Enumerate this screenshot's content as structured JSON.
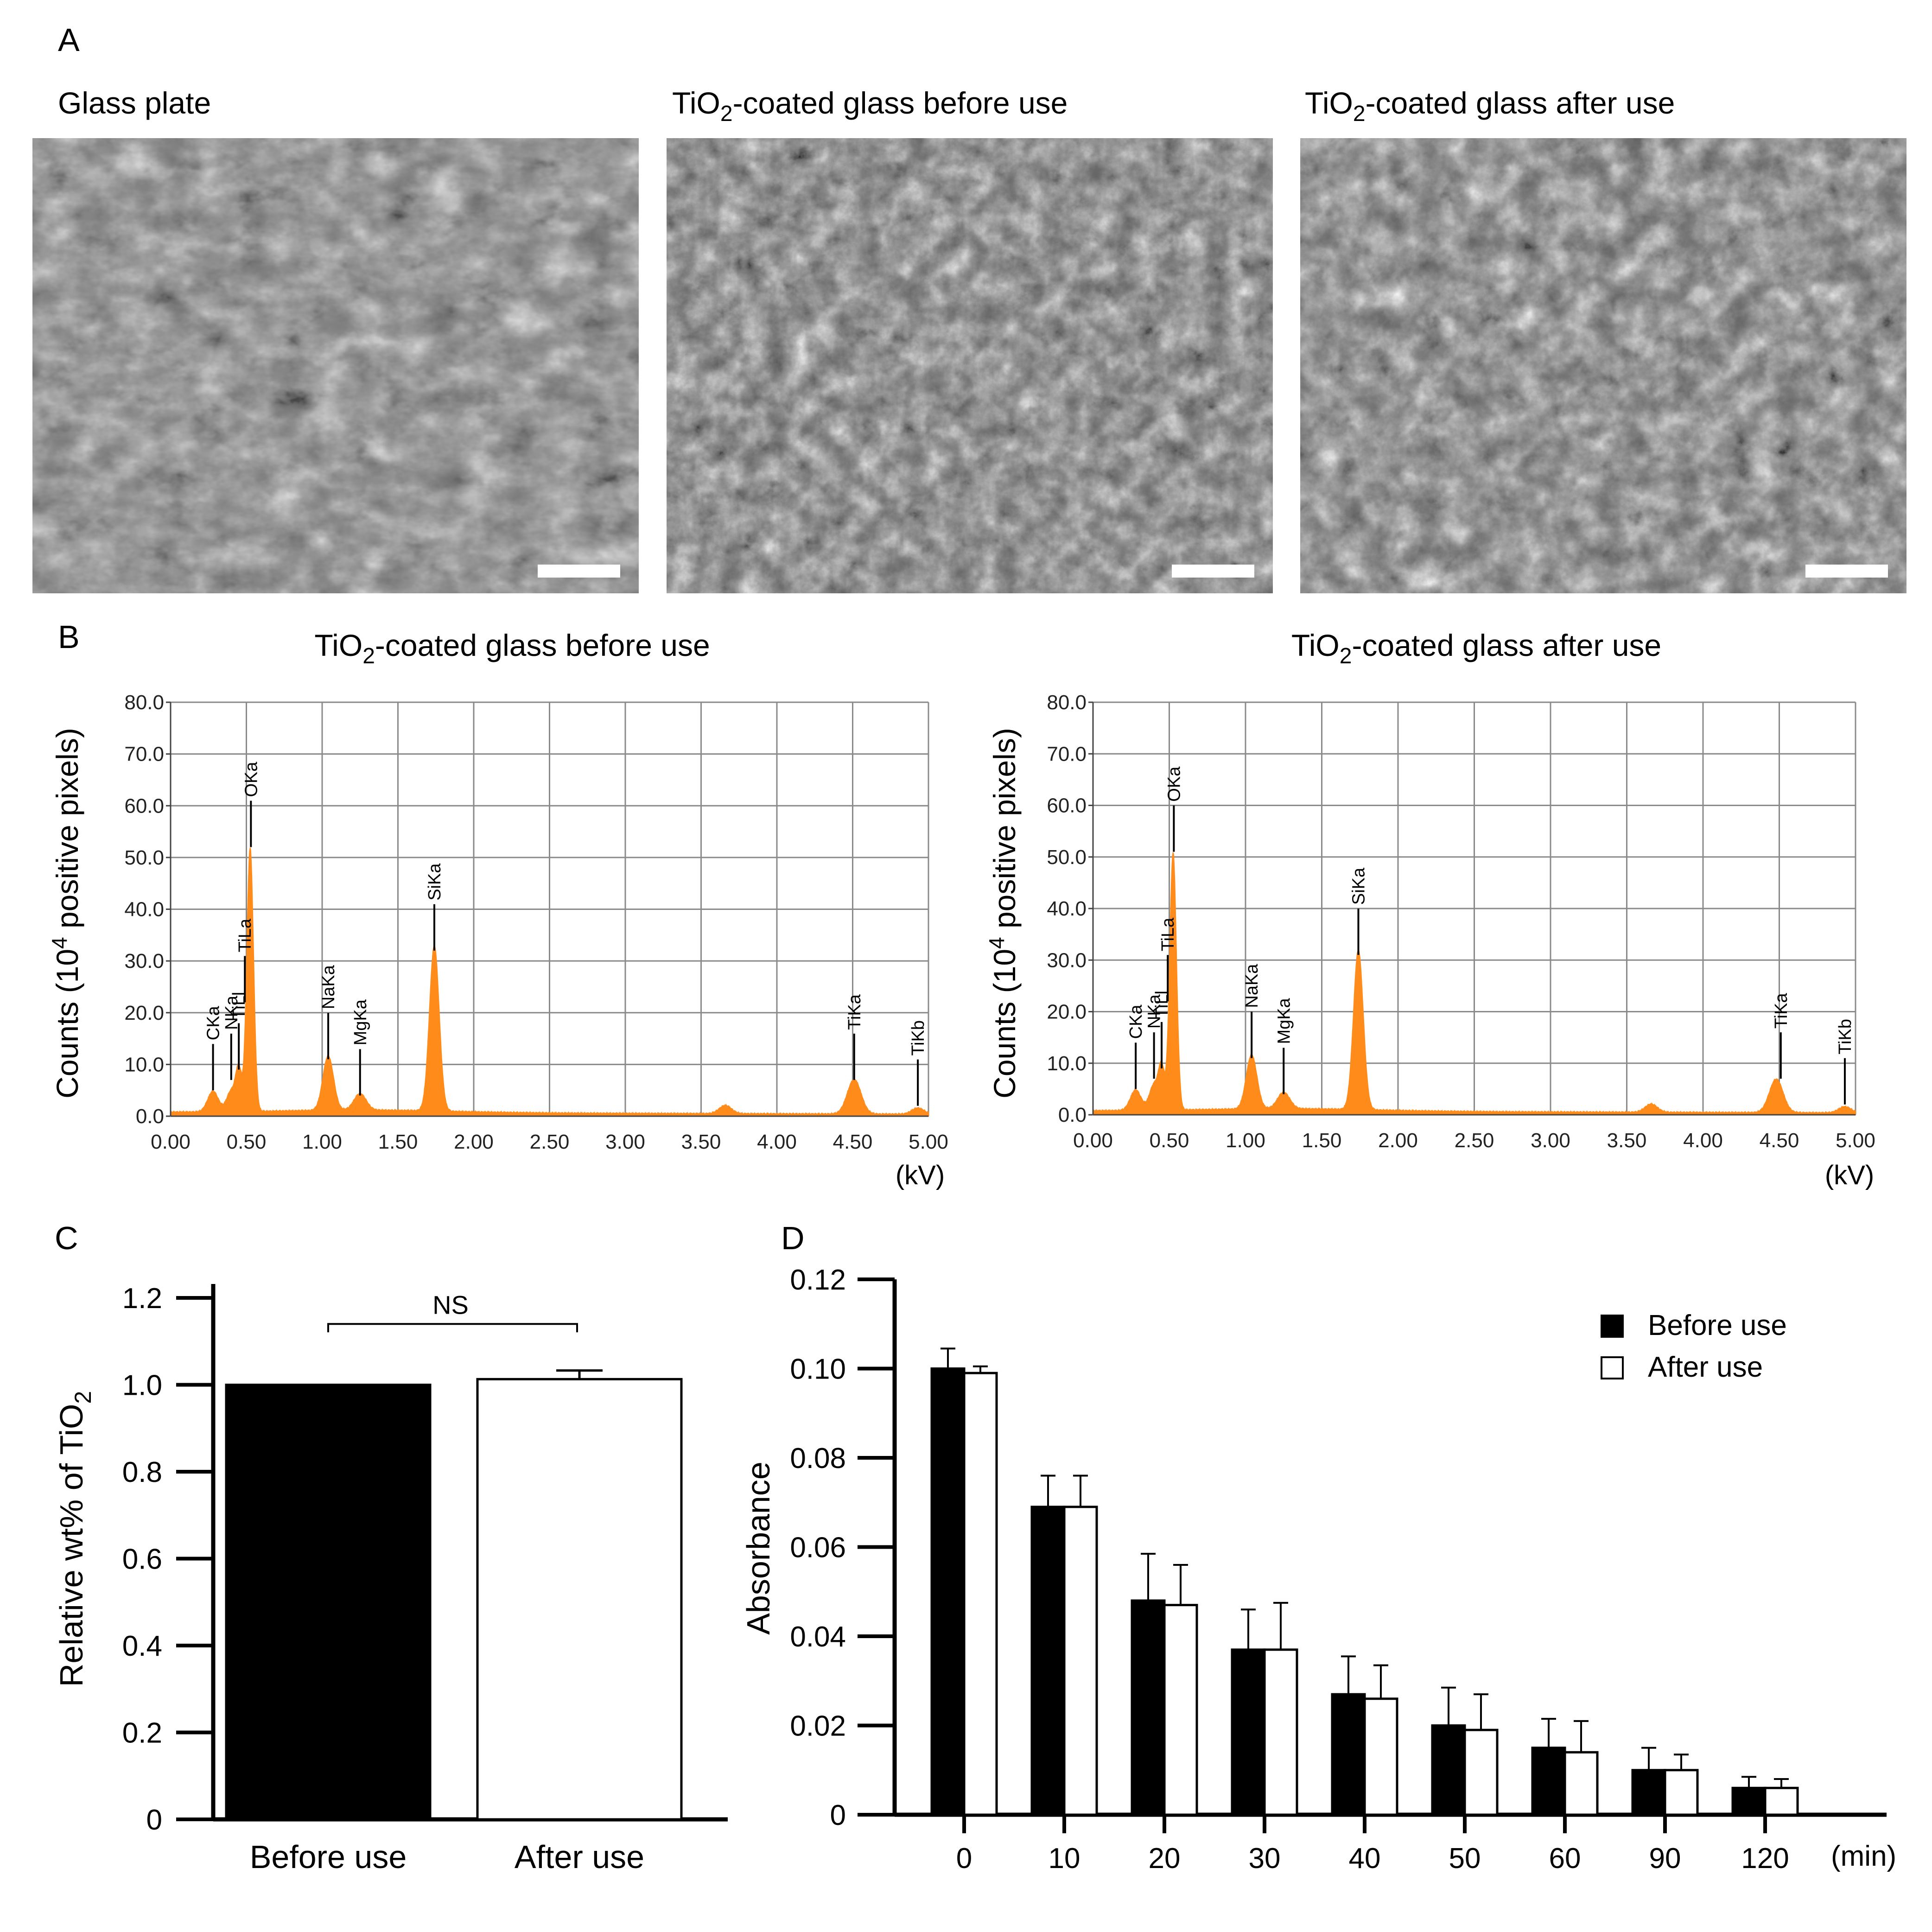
{
  "panels": {
    "A": {
      "letter": "A",
      "images": [
        {
          "title_main": "Glass plate",
          "title_sub": "",
          "title_tail": ""
        },
        {
          "title_main": "TiO",
          "title_sub": "2",
          "title_tail": "-coated glass before use"
        },
        {
          "title_main": "TiO",
          "title_sub": "2",
          "title_tail": "-coated glass after use"
        }
      ]
    },
    "B": {
      "letter": "B",
      "ylabel_a": "Counts (10",
      "ylabel_sup": "4",
      "ylabel_b": " positive pixels)",
      "xunit": "(kV)",
      "spectra": [
        {
          "title_main": "TiO",
          "title_sub": "2",
          "title_tail": "-coated glass before use"
        },
        {
          "title_main": "TiO",
          "title_sub": "2",
          "title_tail": "-coated glass after use"
        }
      ]
    },
    "C": {
      "letter": "C",
      "ylabel_a": "Relative wt% of TiO",
      "ylabel_sub": "2",
      "sig_label": "NS"
    },
    "D": {
      "letter": "D",
      "ylabel": "Absorbance",
      "xunit": "(min)",
      "legend": [
        "Before use",
        "After use"
      ]
    }
  },
  "chart_data": [
    {
      "type": "area",
      "panel": "B-left",
      "title": "TiO2-coated glass before use",
      "xlabel": "(kV)",
      "ylabel": "Counts (10^4 positive pixels)",
      "xlim": [
        0,
        5
      ],
      "ylim": [
        0,
        80
      ],
      "color": "#FF8C1A",
      "grid": true,
      "x_ticks": [
        "0.00",
        "0.50",
        "1.00",
        "1.50",
        "2.00",
        "2.50",
        "3.00",
        "3.50",
        "4.00",
        "4.50",
        "5.00"
      ],
      "y_ticks": [
        "0.0",
        "10.0",
        "20.0",
        "30.0",
        "40.0",
        "50.0",
        "60.0",
        "70.0",
        "80.0"
      ],
      "peaks": [
        {
          "x": 0.28,
          "height": 4,
          "width": 0.035
        },
        {
          "x": 0.4,
          "height": 4,
          "width": 0.03
        },
        {
          "x": 0.45,
          "height": 8,
          "width": 0.02
        },
        {
          "x": 0.525,
          "height": 51,
          "width": 0.022
        },
        {
          "x": 1.04,
          "height": 10.5,
          "width": 0.035
        },
        {
          "x": 1.25,
          "height": 3.2,
          "width": 0.04
        },
        {
          "x": 1.74,
          "height": 32,
          "width": 0.032
        },
        {
          "x": 3.66,
          "height": 1.6,
          "width": 0.04
        },
        {
          "x": 4.51,
          "height": 6.7,
          "width": 0.045
        },
        {
          "x": 4.93,
          "height": 1.2,
          "width": 0.04
        }
      ],
      "annotations": [
        {
          "label": "CKa",
          "x": 0.28,
          "peak": 5
        },
        {
          "label": "NKa",
          "x": 0.4,
          "peak": 7
        },
        {
          "label": "TiLl",
          "x": 0.45,
          "peak": 9
        },
        {
          "label": "TiLa",
          "x": 0.49,
          "peak": 22
        },
        {
          "label": "OKa",
          "x": 0.53,
          "peak": 52
        },
        {
          "label": "NaKa",
          "x": 1.04,
          "peak": 11
        },
        {
          "label": "MgKa",
          "x": 1.25,
          "peak": 4
        },
        {
          "label": "SiKa",
          "x": 1.74,
          "peak": 32
        },
        {
          "label": "TiKa",
          "x": 4.51,
          "peak": 7
        },
        {
          "label": "TiKb",
          "x": 4.93,
          "peak": 2
        }
      ]
    },
    {
      "type": "area",
      "panel": "B-right",
      "title": "TiO2-coated glass after use",
      "xlabel": "(kV)",
      "ylabel": "Counts (10^4 positive pixels)",
      "xlim": [
        0,
        5
      ],
      "ylim": [
        0,
        80
      ],
      "color": "#FF8C1A",
      "grid": true,
      "x_ticks": [
        "0.00",
        "0.50",
        "1.00",
        "1.50",
        "2.00",
        "2.50",
        "3.00",
        "3.50",
        "4.00",
        "4.50",
        "5.00"
      ],
      "y_ticks": [
        "0.0",
        "10.0",
        "20.0",
        "30.0",
        "40.0",
        "50.0",
        "60.0",
        "70.0",
        "80.0"
      ],
      "peaks": [
        {
          "x": 0.28,
          "height": 4,
          "width": 0.035
        },
        {
          "x": 0.4,
          "height": 5,
          "width": 0.03
        },
        {
          "x": 0.45,
          "height": 8,
          "width": 0.02
        },
        {
          "x": 0.525,
          "height": 50,
          "width": 0.022
        },
        {
          "x": 1.04,
          "height": 10.5,
          "width": 0.035
        },
        {
          "x": 1.25,
          "height": 3.2,
          "width": 0.04
        },
        {
          "x": 1.74,
          "height": 31,
          "width": 0.032
        },
        {
          "x": 3.66,
          "height": 1.6,
          "width": 0.04
        },
        {
          "x": 4.48,
          "height": 6.5,
          "width": 0.045
        },
        {
          "x": 4.93,
          "height": 1.2,
          "width": 0.04
        }
      ],
      "annotations": [
        {
          "label": "CKa",
          "x": 0.28,
          "peak": 5
        },
        {
          "label": "NKa",
          "x": 0.4,
          "peak": 7
        },
        {
          "label": "TiLl",
          "x": 0.45,
          "peak": 9
        },
        {
          "label": "TiLa",
          "x": 0.49,
          "peak": 22
        },
        {
          "label": "OKa",
          "x": 0.53,
          "peak": 51
        },
        {
          "label": "NaKa",
          "x": 1.04,
          "peak": 11
        },
        {
          "label": "MgKa",
          "x": 1.25,
          "peak": 4
        },
        {
          "label": "SiKa",
          "x": 1.74,
          "peak": 31
        },
        {
          "label": "TiKa",
          "x": 4.51,
          "peak": 7
        },
        {
          "label": "TiKb",
          "x": 4.93,
          "peak": 2
        }
      ]
    },
    {
      "type": "bar",
      "panel": "C",
      "categories": [
        "Before use",
        "After use"
      ],
      "values": [
        1.0,
        1.013
      ],
      "errors": [
        0,
        0.02
      ],
      "fills": [
        "#000000",
        "#ffffff"
      ],
      "ylabel": "Relative wt% of TiO2",
      "ylim": [
        0,
        1.2
      ],
      "y_ticks": [
        "0",
        "0.2",
        "0.4",
        "0.6",
        "0.8",
        "1.0",
        "1.2"
      ],
      "annotation": "NS"
    },
    {
      "type": "bar",
      "panel": "D",
      "categories": [
        "0",
        "10",
        "20",
        "30",
        "40",
        "50",
        "60",
        "90",
        "120"
      ],
      "series": [
        {
          "name": "Before use",
          "values": [
            0.1,
            0.069,
            0.048,
            0.037,
            0.027,
            0.02,
            0.015,
            0.01,
            0.006
          ],
          "errors": [
            0.0045,
            0.007,
            0.0105,
            0.009,
            0.0085,
            0.0085,
            0.0065,
            0.005,
            0.0025
          ],
          "fill": "#000000"
        },
        {
          "name": "After use",
          "values": [
            0.099,
            0.069,
            0.047,
            0.037,
            0.026,
            0.019,
            0.014,
            0.01,
            0.006
          ],
          "errors": [
            0.0015,
            0.007,
            0.009,
            0.0105,
            0.0075,
            0.008,
            0.007,
            0.0035,
            0.002
          ],
          "fill": "#ffffff"
        }
      ],
      "ylabel": "Absorbance",
      "xlabel": "(min)",
      "ylim": [
        0,
        0.12
      ],
      "y_ticks": [
        "0",
        "0.02",
        "0.04",
        "0.06",
        "0.08",
        "0.10",
        "0.12"
      ],
      "legend_position": "top-right"
    }
  ]
}
